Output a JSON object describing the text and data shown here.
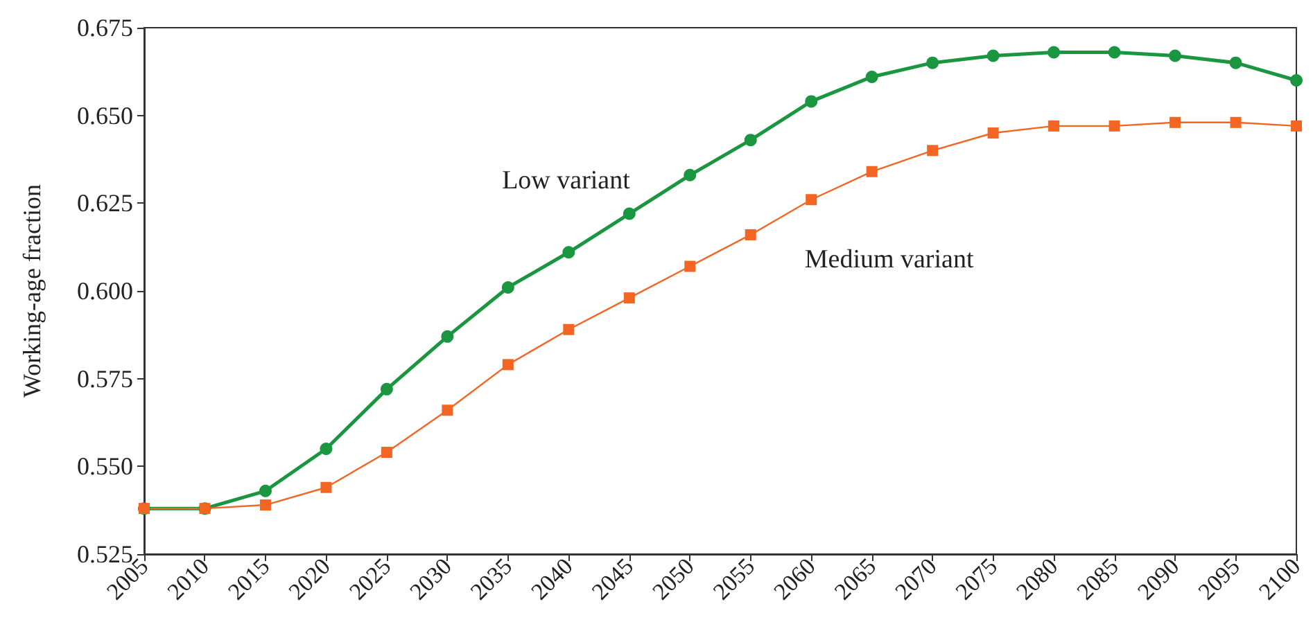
{
  "chart_data": {
    "type": "line",
    "ylabel": "Working-age fraction",
    "x": [
      2005,
      2010,
      2015,
      2020,
      2025,
      2030,
      2035,
      2040,
      2045,
      2050,
      2055,
      2060,
      2065,
      2070,
      2075,
      2080,
      2085,
      2090,
      2095,
      2100
    ],
    "xlim": [
      2005,
      2100
    ],
    "xticks": [
      2005,
      2010,
      2015,
      2020,
      2025,
      2030,
      2035,
      2040,
      2045,
      2050,
      2055,
      2060,
      2065,
      2070,
      2075,
      2080,
      2085,
      2090,
      2095,
      2100
    ],
    "ylim": [
      0.525,
      0.675
    ],
    "yticks": [
      {
        "value": 0.525,
        "label": "0.525"
      },
      {
        "value": 0.55,
        "label": "0.550"
      },
      {
        "value": 0.575,
        "label": "0.575"
      },
      {
        "value": 0.6,
        "label": "0.600"
      },
      {
        "value": 0.625,
        "label": "0.625"
      },
      {
        "value": 0.65,
        "label": "0.650"
      },
      {
        "value": 0.675,
        "label": "0.675"
      }
    ],
    "grid": false,
    "legend": false,
    "series": [
      {
        "name": "Low variant",
        "color": "#1a9641",
        "marker": "circle",
        "values": [
          0.538,
          0.538,
          0.543,
          0.555,
          0.572,
          0.587,
          0.601,
          0.611,
          0.622,
          0.633,
          0.643,
          0.654,
          0.661,
          0.665,
          0.667,
          0.668,
          0.668,
          0.667,
          0.665,
          0.66
        ]
      },
      {
        "name": "Medium variant",
        "color": "#f26522",
        "marker": "square",
        "values": [
          0.538,
          0.538,
          0.539,
          0.544,
          0.554,
          0.566,
          0.579,
          0.589,
          0.598,
          0.607,
          0.616,
          0.626,
          0.634,
          0.64,
          0.645,
          0.647,
          0.647,
          0.648,
          0.648,
          0.647
        ]
      }
    ]
  }
}
